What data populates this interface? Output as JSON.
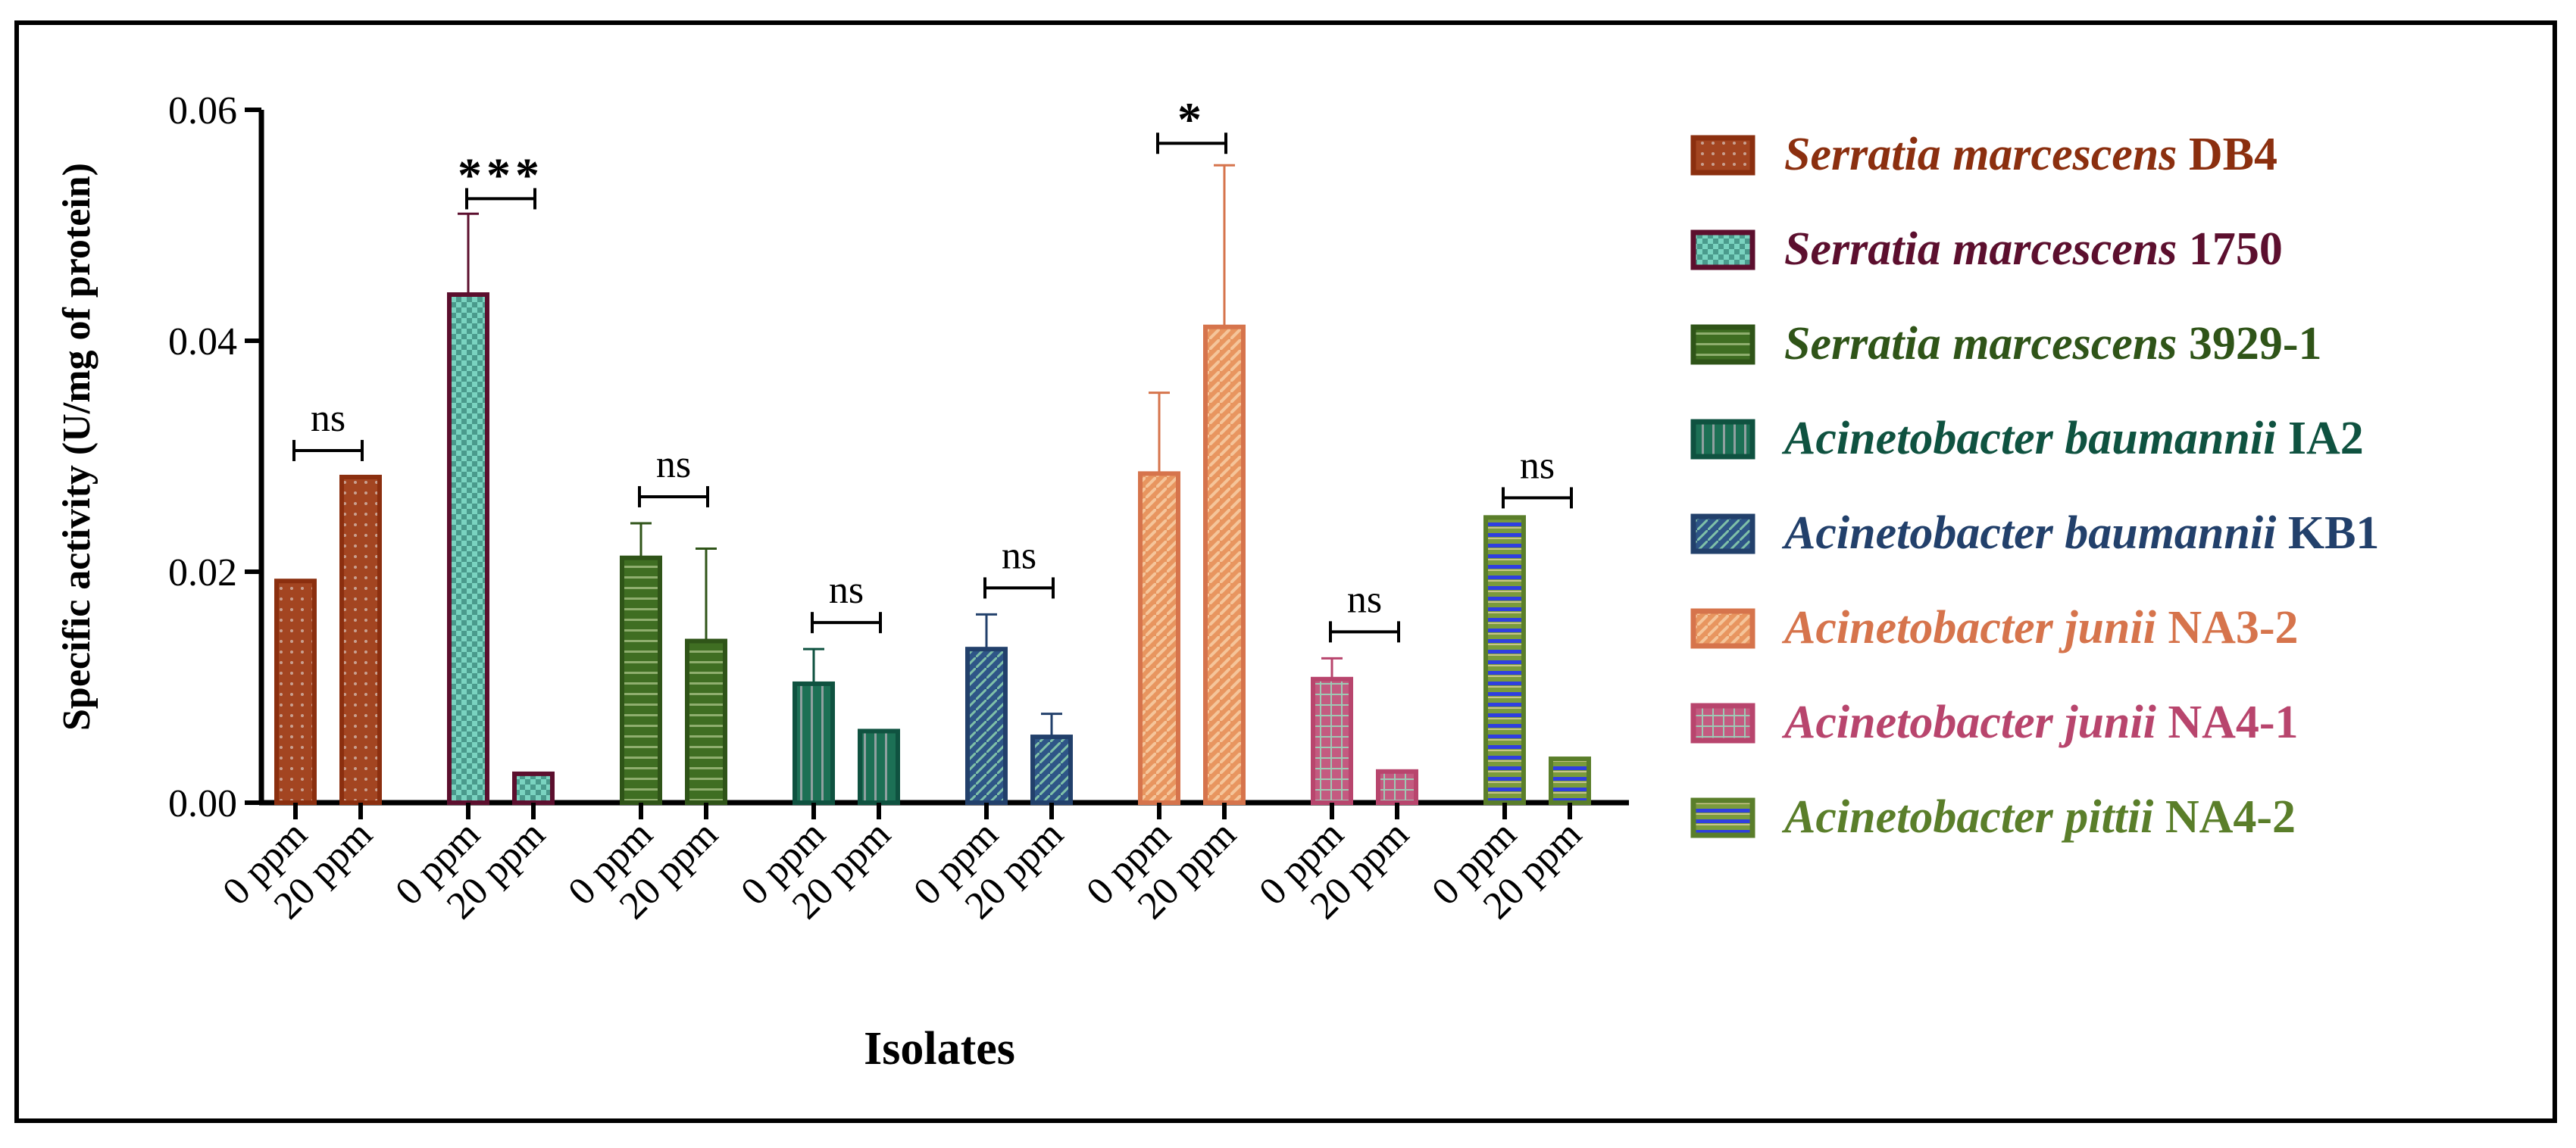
{
  "chart_data": {
    "type": "bar",
    "xlabel": "Isolates",
    "ylabel": "Specific activity (U/mg of protein)",
    "ylim": [
      0,
      0.06
    ],
    "yticks": [
      "0.00",
      "0.02",
      "0.04",
      "0.06"
    ],
    "categories": [
      "0 ppm",
      "20 ppm"
    ],
    "legend_position": "right",
    "groups": [
      {
        "strain": "Serratia marcescens",
        "code": "DB4",
        "color": "#8B2F0F",
        "fill": "#A34521",
        "pattern": "dots",
        "values": [
          0.0192,
          0.0282
        ],
        "errors": [
          0,
          0
        ],
        "significance": "ns"
      },
      {
        "strain": "Serratia marcescens",
        "code": "1750",
        "color": "#5C0F2E",
        "fill": "#7AD3C0",
        "pattern": "checker",
        "values": [
          0.044,
          0.0025
        ],
        "errors": [
          0.007,
          0
        ],
        "significance": "***"
      },
      {
        "strain": "Serratia marcescens",
        "code": "3929-1",
        "color": "#2F5418",
        "fill": "#3F6E22",
        "pattern": "hlines",
        "values": [
          0.0212,
          0.014
        ],
        "errors": [
          0.003,
          0.008
        ],
        "significance": "ns"
      },
      {
        "strain": "Acinetobacter baumannii",
        "code": "IA2",
        "color": "#0F5240",
        "fill": "#1C7055",
        "pattern": "vlines",
        "values": [
          0.0103,
          0.0062
        ],
        "errors": [
          0.003,
          0
        ],
        "significance": "ns"
      },
      {
        "strain": "Acinetobacter baumannii",
        "code": "KB1",
        "color": "#22406B",
        "fill": "#2E5587",
        "pattern": "diag",
        "values": [
          0.0133,
          0.0057
        ],
        "errors": [
          0.003,
          0.002
        ],
        "significance": "ns"
      },
      {
        "strain": "Acinetobacter junii",
        "code": "NA3-2",
        "color": "#D6744C",
        "fill": "#E8955F",
        "pattern": "diag-light",
        "values": [
          0.0285,
          0.0412
        ],
        "errors": [
          0.007,
          0.014
        ],
        "significance": "*"
      },
      {
        "strain": "Acinetobacter junii",
        "code": "NA4-1",
        "color": "#B8456D",
        "fill": "#C45A80",
        "pattern": "grid",
        "values": [
          0.0107,
          0.0027
        ],
        "errors": [
          0.0018,
          0
        ],
        "significance": "ns"
      },
      {
        "strain": "Acinetobacter pittii",
        "code": "NA4-2",
        "color": "#5A7E2A",
        "fill": "#7A9B3C",
        "pattern": "blue-stripe",
        "values": [
          0.0247,
          0.0038
        ],
        "errors": [
          0,
          0
        ],
        "significance": "ns"
      }
    ]
  }
}
